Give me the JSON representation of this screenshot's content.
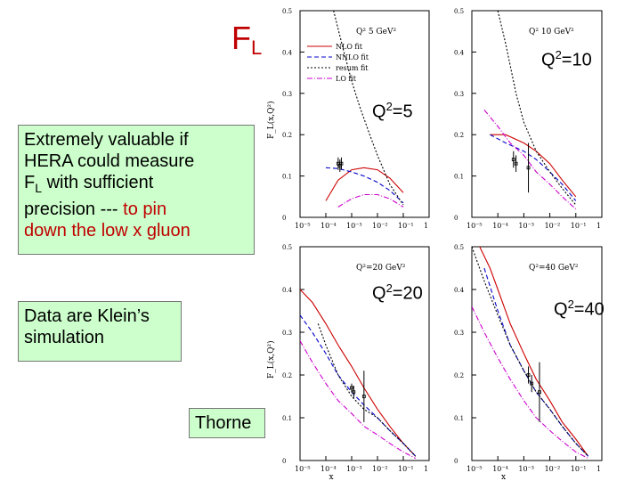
{
  "slide": {
    "title_main": "F",
    "title_sub": "L",
    "box1": {
      "line1": "Extremely valuable if",
      "line2": "HERA could measure",
      "line3_pre": "F",
      "line3_sub": "L",
      "line3_post": " with sufficient",
      "line4_pre": "precision --- ",
      "line4_red": "to pin",
      "line5_red": "down the low x gluon"
    },
    "box2": {
      "line1": "Data are Klein’s",
      "line2": "simulation"
    },
    "author": "Thorne",
    "q_labels": [
      {
        "pre": "Q",
        "sup": "2",
        "post": "=5"
      },
      {
        "pre": "Q",
        "sup": "2",
        "post": "=10"
      },
      {
        "pre": "Q",
        "sup": "2",
        "post": "=20"
      },
      {
        "pre": "Q",
        "sup": "2",
        "post": "=40"
      }
    ]
  },
  "colors": {
    "red": "#c00000",
    "nlo": "#cc0000",
    "nnlo": "#0000cc",
    "resum": "#000000",
    "lo": "#cc00cc",
    "box": "#ccffcc"
  },
  "chart_data": [
    {
      "type": "line",
      "title": "Q² 5 GeV²",
      "ylabel": "F_L(x,Q²)",
      "xlabel": "",
      "xscale": "log",
      "xlim": [
        1e-05,
        1
      ],
      "ylim": [
        0,
        0.5
      ],
      "yticks": [
        "0",
        "0.1",
        "0.2",
        "0.3",
        "0.4",
        "0.5"
      ],
      "xticks": [
        "10⁻⁵",
        "10⁻⁴",
        "10⁻³",
        "10⁻²",
        "10⁻¹",
        "1"
      ],
      "legend": [
        "NLO fit",
        "NNLO fit",
        "resum fit",
        "LO fit"
      ],
      "series": [
        {
          "name": "NLO fit",
          "x": [
            0.0001,
            0.0003,
            0.001,
            0.003,
            0.01,
            0.03,
            0.1
          ],
          "values": [
            0.04,
            0.09,
            0.115,
            0.12,
            0.115,
            0.095,
            0.06
          ]
        },
        {
          "name": "NNLO fit",
          "x": [
            0.0001,
            0.0003,
            0.001,
            0.003,
            0.01,
            0.03,
            0.1
          ],
          "values": [
            0.12,
            0.118,
            0.11,
            0.1,
            0.085,
            0.065,
            0.035
          ]
        },
        {
          "name": "resum fit",
          "x": [
            0.0002,
            0.0005,
            0.001,
            0.002,
            0.005,
            0.01,
            0.03,
            0.1
          ],
          "values": [
            0.5,
            0.4,
            0.33,
            0.27,
            0.2,
            0.15,
            0.08,
            0.03
          ]
        },
        {
          "name": "LO fit",
          "x": [
            0.0003,
            0.001,
            0.003,
            0.01,
            0.03,
            0.1
          ],
          "values": [
            0.025,
            0.045,
            0.055,
            0.055,
            0.045,
            0.025
          ]
        }
      ],
      "points": [
        {
          "x": 0.0003,
          "y": 0.13,
          "err": 0.015
        },
        {
          "x": 0.00035,
          "y": 0.125,
          "err": 0.015
        },
        {
          "x": 0.0004,
          "y": 0.13,
          "err": 0.015
        }
      ]
    },
    {
      "type": "line",
      "title": "Q² 10 GeV²",
      "ylabel": "",
      "xlabel": "",
      "xscale": "log",
      "xlim": [
        1e-05,
        1
      ],
      "ylim": [
        0,
        0.5
      ],
      "yticks": [
        "0",
        "0.1",
        "0.2",
        "0.3",
        "0.4",
        "0.5"
      ],
      "xticks": [
        "10⁻⁵",
        "10⁻⁴",
        "10⁻³",
        "10⁻²",
        "10⁻¹",
        "1"
      ],
      "series": [
        {
          "name": "NLO fit",
          "x": [
            5e-05,
            0.0002,
            0.001,
            0.003,
            0.01,
            0.03,
            0.1
          ],
          "values": [
            0.2,
            0.2,
            0.18,
            0.16,
            0.13,
            0.09,
            0.05
          ]
        },
        {
          "name": "NNLO fit",
          "x": [
            5e-05,
            0.0002,
            0.001,
            0.003,
            0.01,
            0.03,
            0.1
          ],
          "values": [
            0.2,
            0.18,
            0.16,
            0.14,
            0.11,
            0.08,
            0.04
          ]
        },
        {
          "name": "resum fit",
          "x": [
            0.0001,
            0.0002,
            0.0005,
            0.001,
            0.003,
            0.01,
            0.03,
            0.1
          ],
          "values": [
            0.5,
            0.42,
            0.3,
            0.23,
            0.16,
            0.11,
            0.07,
            0.03
          ]
        },
        {
          "name": "LO fit",
          "x": [
            3e-05,
            0.0001,
            0.0003,
            0.001,
            0.003,
            0.01,
            0.03,
            0.1
          ],
          "values": [
            0.26,
            0.22,
            0.18,
            0.15,
            0.11,
            0.08,
            0.05,
            0.02
          ]
        }
      ],
      "points": [
        {
          "x": 0.0004,
          "y": 0.14,
          "err": 0.02
        },
        {
          "x": 0.0005,
          "y": 0.13,
          "err": 0.02
        },
        {
          "x": 0.0015,
          "y": 0.12,
          "err": 0.06
        }
      ]
    },
    {
      "type": "line",
      "title": "Q²=20 GeV²",
      "ylabel": "F_L(x,Q²)",
      "xlabel": "x",
      "xscale": "log",
      "xlim": [
        1e-05,
        1
      ],
      "ylim": [
        0,
        0.5
      ],
      "yticks": [
        "0",
        "0.1",
        "0.2",
        "0.3",
        "0.4",
        "0.5"
      ],
      "xticks": [
        "10⁻⁵",
        "10⁻⁴",
        "10⁻³",
        "10⁻²",
        "10⁻¹",
        "1"
      ],
      "series": [
        {
          "name": "NLO fit",
          "x": [
            1e-05,
            3e-05,
            0.0001,
            0.0003,
            0.001,
            0.003,
            0.01,
            0.03,
            0.1,
            0.3
          ],
          "values": [
            0.4,
            0.37,
            0.32,
            0.27,
            0.22,
            0.17,
            0.12,
            0.08,
            0.04,
            0.01
          ]
        },
        {
          "name": "NNLO fit",
          "x": [
            1e-05,
            3e-05,
            0.0001,
            0.0003,
            0.001,
            0.003,
            0.01,
            0.03,
            0.1,
            0.3
          ],
          "values": [
            0.34,
            0.3,
            0.25,
            0.2,
            0.16,
            0.13,
            0.1,
            0.07,
            0.04,
            0.01
          ]
        },
        {
          "name": "resum fit",
          "x": [
            5e-05,
            0.0001,
            0.0003,
            0.001,
            0.003,
            0.01,
            0.03,
            0.1,
            0.3
          ],
          "values": [
            0.32,
            0.27,
            0.2,
            0.15,
            0.12,
            0.1,
            0.07,
            0.04,
            0.01
          ]
        },
        {
          "name": "LO fit",
          "x": [
            1e-05,
            3e-05,
            0.0001,
            0.0003,
            0.001,
            0.003,
            0.01,
            0.03,
            0.1,
            0.3
          ],
          "values": [
            0.28,
            0.23,
            0.18,
            0.14,
            0.11,
            0.08,
            0.06,
            0.04,
            0.02,
            0.005
          ]
        }
      ],
      "points": [
        {
          "x": 0.001,
          "y": 0.17,
          "err": 0.01
        },
        {
          "x": 0.0012,
          "y": 0.16,
          "err": 0.015
        },
        {
          "x": 0.003,
          "y": 0.15,
          "err": 0.06
        }
      ]
    },
    {
      "type": "line",
      "title": "Q²=40 GeV²",
      "ylabel": "",
      "xlabel": "x",
      "xscale": "log",
      "xlim": [
        1e-05,
        1
      ],
      "ylim": [
        0,
        0.5
      ],
      "yticks": [
        "0",
        "0.1",
        "0.2",
        "0.3",
        "0.4",
        "0.5"
      ],
      "xticks": [
        "10⁻⁵",
        "10⁻⁴",
        "10⁻³",
        "10⁻²",
        "10⁻¹",
        "1"
      ],
      "series": [
        {
          "name": "NLO fit",
          "x": [
            2e-05,
            5e-05,
            0.0001,
            0.0003,
            0.001,
            0.003,
            0.01,
            0.03,
            0.1,
            0.3
          ],
          "values": [
            0.5,
            0.45,
            0.4,
            0.32,
            0.25,
            0.19,
            0.14,
            0.09,
            0.05,
            0.01
          ]
        },
        {
          "name": "NNLO fit",
          "x": [
            3e-05,
            0.0001,
            0.0003,
            0.001,
            0.003,
            0.01,
            0.03,
            0.1,
            0.3
          ],
          "values": [
            0.45,
            0.35,
            0.27,
            0.21,
            0.16,
            0.12,
            0.08,
            0.04,
            0.01
          ]
        },
        {
          "name": "resum fit",
          "x": [
            1e-05,
            3e-05,
            0.0001,
            0.0003,
            0.001,
            0.003,
            0.01,
            0.03,
            0.1,
            0.3
          ],
          "values": [
            0.5,
            0.42,
            0.34,
            0.27,
            0.21,
            0.16,
            0.12,
            0.08,
            0.04,
            0.01
          ]
        },
        {
          "name": "LO fit",
          "x": [
            1e-05,
            3e-05,
            0.0001,
            0.0003,
            0.001,
            0.003,
            0.01,
            0.03,
            0.1,
            0.3
          ],
          "values": [
            0.36,
            0.3,
            0.24,
            0.19,
            0.14,
            0.1,
            0.07,
            0.045,
            0.02,
            0.005
          ]
        }
      ],
      "points": [
        {
          "x": 0.0015,
          "y": 0.2,
          "err": 0.02
        },
        {
          "x": 0.002,
          "y": 0.18,
          "err": 0.02
        },
        {
          "x": 0.004,
          "y": 0.16,
          "err": 0.07
        }
      ]
    }
  ]
}
